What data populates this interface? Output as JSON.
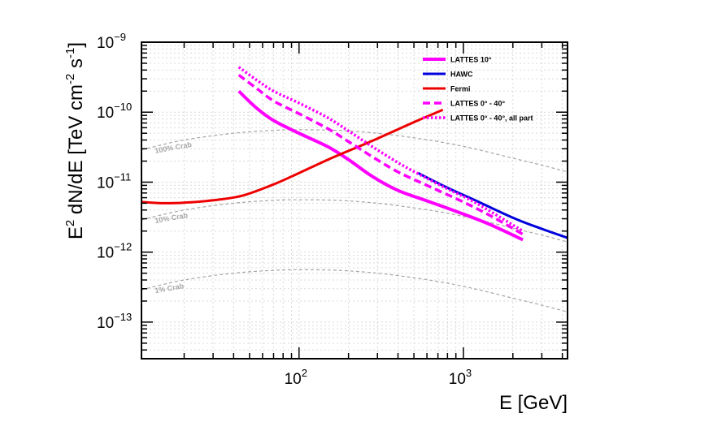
{
  "chart_data": {
    "type": "line",
    "title": "",
    "xlabel": "E [GeV]",
    "ylabel_parts": [
      "E",
      "2",
      " dN/dE [TeV cm",
      "-2",
      " s",
      "-1",
      "]"
    ],
    "x_scale": "log",
    "y_scale": "log",
    "xlim": [
      11,
      4300
    ],
    "ylim": [
      3e-14,
      1e-09
    ],
    "grid": true,
    "x_ticks": [
      {
        "value": 100,
        "base": "10",
        "exp": "2"
      },
      {
        "value": 1000,
        "base": "10",
        "exp": "3"
      }
    ],
    "y_ticks": [
      {
        "value": 1e-13,
        "base": "10",
        "exp": "−13"
      },
      {
        "value": 1e-12,
        "base": "10",
        "exp": "−12"
      },
      {
        "value": 1e-11,
        "base": "10",
        "exp": "−11"
      },
      {
        "value": 1e-10,
        "base": "10",
        "exp": "−10"
      },
      {
        "value": 1e-09,
        "base": "10",
        "exp": "−9"
      }
    ],
    "series": [
      {
        "name": "LATTES 10°",
        "color": "#ff00ff",
        "style": "solid",
        "width": 4,
        "x": [
          43,
          55,
          70,
          100,
          150,
          200,
          280,
          400,
          600,
          1000,
          1500,
          2300
        ],
        "y": [
          2e-10,
          1.15e-10,
          7.6e-11,
          5e-11,
          3.2e-11,
          2.1e-11,
          1.2e-11,
          7.6e-12,
          5.4e-12,
          3.5e-12,
          2.4e-12,
          1.5e-12
        ]
      },
      {
        "name": "HAWC",
        "color": "#0000dd",
        "style": "solid",
        "width": 3,
        "x": [
          530,
          800,
          1200,
          2000,
          3000,
          4300
        ],
        "y": [
          1.35e-11,
          8.3e-12,
          5.4e-12,
          3.1e-12,
          2.15e-12,
          1.6e-12
        ]
      },
      {
        "name": "Fermi",
        "color": "#ee0000",
        "style": "solid",
        "width": 3,
        "x": [
          11,
          15,
          20,
          30,
          45,
          70,
          100,
          150,
          200,
          300,
          500,
          750
        ],
        "y": [
          5.2e-12,
          5e-12,
          5.1e-12,
          5.5e-12,
          6.4e-12,
          9.3e-12,
          1.35e-11,
          2.1e-11,
          2.8e-11,
          4.2e-11,
          7.2e-11,
          1.08e-10
        ]
      },
      {
        "name": "LATTES 0° - 40°",
        "color": "#ff00ff",
        "style": "dashed",
        "width": 3.5,
        "x": [
          43,
          55,
          70,
          100,
          150,
          200,
          280,
          400,
          600,
          1000,
          1500,
          2300
        ],
        "y": [
          3.4e-10,
          2.2e-10,
          1.45e-10,
          9.5e-11,
          5.8e-11,
          3.8e-11,
          2.3e-11,
          1.4e-11,
          9e-12,
          5.2e-12,
          3.2e-12,
          1.8e-12
        ]
      },
      {
        "name": "LATTES 0° - 40°, all part",
        "color": "#ff00ff",
        "style": "dotted",
        "width": 3.5,
        "x": [
          43,
          55,
          70,
          100,
          150,
          200,
          280,
          400,
          520,
          800,
          1200,
          2300
        ],
        "y": [
          4.4e-10,
          2.9e-10,
          2e-10,
          1.35e-10,
          8.3e-11,
          5.4e-11,
          3.2e-11,
          1.9e-11,
          1.35e-11,
          8e-12,
          5e-12,
          2e-12
        ]
      }
    ],
    "reference_curves": [
      {
        "label": "100% Crab",
        "color": "#a6a6a6",
        "x": [
          11,
          20,
          40,
          70,
          100,
          150,
          200,
          300,
          500,
          800,
          1200,
          2000,
          3000,
          4300
        ],
        "y": [
          2.9e-11,
          4e-11,
          5e-11,
          5.5e-11,
          5.6e-11,
          5.55e-11,
          5.4e-11,
          5e-11,
          4.3e-11,
          3.6e-11,
          2.95e-11,
          2.2e-11,
          1.75e-11,
          1.4e-11
        ]
      },
      {
        "label": "10% Crab",
        "color": "#a6a6a6",
        "x": [
          11,
          20,
          40,
          70,
          100,
          150,
          200,
          300,
          500,
          800,
          1200,
          2000,
          3000,
          4300
        ],
        "y": [
          2.9e-12,
          4e-12,
          5e-12,
          5.5e-12,
          5.6e-12,
          5.55e-12,
          5.4e-12,
          5e-12,
          4.3e-12,
          3.6e-12,
          2.95e-12,
          2.2e-12,
          1.75e-12,
          1.4e-12
        ]
      },
      {
        "label": "1% Crab",
        "color": "#a6a6a6",
        "x": [
          11,
          20,
          40,
          70,
          100,
          150,
          200,
          300,
          500,
          800,
          1200,
          2000,
          3000,
          4300
        ],
        "y": [
          2.9e-13,
          4e-13,
          5e-13,
          5.5e-13,
          5.6e-13,
          5.55e-13,
          5.4e-13,
          5e-13,
          4.3e-13,
          3.6e-13,
          2.95e-13,
          2.2e-13,
          1.75e-13,
          1.4e-13
        ]
      }
    ],
    "legend_position": "top-right"
  }
}
